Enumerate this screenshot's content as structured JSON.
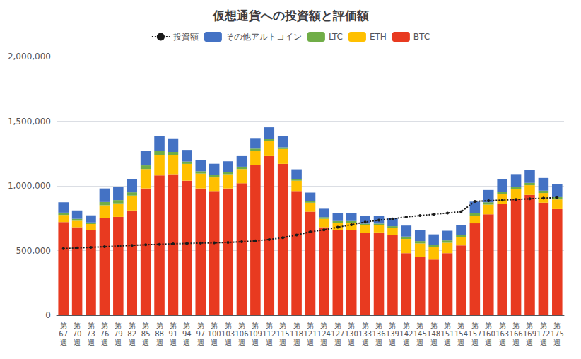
{
  "chart_data": {
    "type": "bar",
    "title": "仮想通貨への投資額と評価額",
    "stacked": true,
    "grid": true,
    "legend": "top",
    "categories": [
      "第\n67\n週",
      "第\n70\n週",
      "第\n73\n週",
      "第\n76\n週",
      "第\n79\n週",
      "第\n82\n週",
      "第\n85\n週",
      "第\n88\n週",
      "第\n91\n週",
      "第\n94\n週",
      "第\n97\n週",
      "第\n100\n週",
      "第\n103\n週",
      "第\n106\n週",
      "第\n109\n週",
      "第\n112\n週",
      "第\n115\n週",
      "第\n118\n週",
      "第\n121\n週",
      "第\n124\n週",
      "第\n127\n週",
      "第\n130\n週",
      "第\n133\n週",
      "第\n136\n週",
      "第\n139\n週",
      "第\n142\n週",
      "第\n145\n週",
      "第\n148\n週",
      "第\n151\n週",
      "第\n154\n週",
      "第\n157\n週",
      "第\n160\n週",
      "第\n163\n週",
      "第\n166\n週",
      "第\n169\n週",
      "第\n172\n週",
      "第\n175\n週"
    ],
    "series": [
      {
        "name": "BTC",
        "type": "bar",
        "color": "#E83A20",
        "values": [
          720000,
          680000,
          660000,
          750000,
          760000,
          810000,
          980000,
          1080000,
          1090000,
          1040000,
          980000,
          960000,
          980000,
          1020000,
          1160000,
          1230000,
          1170000,
          960000,
          800000,
          680000,
          660000,
          660000,
          640000,
          640000,
          620000,
          480000,
          450000,
          430000,
          480000,
          540000,
          710000,
          780000,
          860000,
          900000,
          930000,
          870000,
          820000
        ]
      },
      {
        "name": "ETH",
        "type": "bar",
        "color": "#FFC000",
        "values": [
          55000,
          50000,
          45000,
          100000,
          105000,
          115000,
          150000,
          160000,
          150000,
          130000,
          115000,
          105000,
          110000,
          110000,
          110000,
          115000,
          115000,
          80000,
          70000,
          65000,
          55000,
          55000,
          55000,
          55000,
          55000,
          110000,
          105000,
          95000,
          80000,
          65000,
          60000,
          75000,
          75000,
          75000,
          75000,
          75000,
          75000
        ]
      },
      {
        "name": "LTC",
        "type": "bar",
        "color": "#70AD47",
        "values": [
          18000,
          15000,
          12000,
          25000,
          25000,
          25000,
          28000,
          28000,
          22000,
          18000,
          18000,
          18000,
          18000,
          18000,
          18000,
          18000,
          13000,
          13000,
          13000,
          13000,
          13000,
          13000,
          13000,
          13000,
          13000,
          18000,
          18000,
          18000,
          18000,
          18000,
          18000,
          18000,
          18000,
          18000,
          18000,
          18000,
          18000
        ]
      },
      {
        "name": "その他アルトコイン",
        "type": "bar",
        "color": "#4472C4",
        "values": [
          80000,
          65000,
          55000,
          105000,
          100000,
          100000,
          110000,
          115000,
          105000,
          90000,
          88000,
          88000,
          82000,
          82000,
          82000,
          90000,
          90000,
          75000,
          65000,
          65000,
          62000,
          62000,
          62000,
          62000,
          62000,
          85000,
          85000,
          82000,
          75000,
          72000,
          90000,
          95000,
          98000,
          98000,
          98000,
          98000,
          98000
        ]
      },
      {
        "name": "投資額",
        "type": "line",
        "color": "#1a1a1a",
        "line_style": "dotted",
        "marker": "circle",
        "values": [
          515000,
          520000,
          525000,
          530000,
          535000,
          540000,
          545000,
          548000,
          552000,
          555000,
          558000,
          560000,
          563000,
          568000,
          575000,
          585000,
          600000,
          620000,
          645000,
          660000,
          680000,
          700000,
          720000,
          735000,
          745000,
          760000,
          770000,
          780000,
          790000,
          800000,
          880000,
          885000,
          890000,
          895000,
          900000,
          905000,
          910000
        ]
      }
    ],
    "ylim": [
      0,
      2000000
    ],
    "yticks": [
      0,
      {
        "value": 500000,
        "label": "500,000"
      },
      {
        "value": 1000000,
        "label": "1,000,000"
      },
      {
        "value": 1500000,
        "label": "1,500,000"
      },
      {
        "value": 2000000,
        "label": "2,000,000"
      }
    ]
  }
}
